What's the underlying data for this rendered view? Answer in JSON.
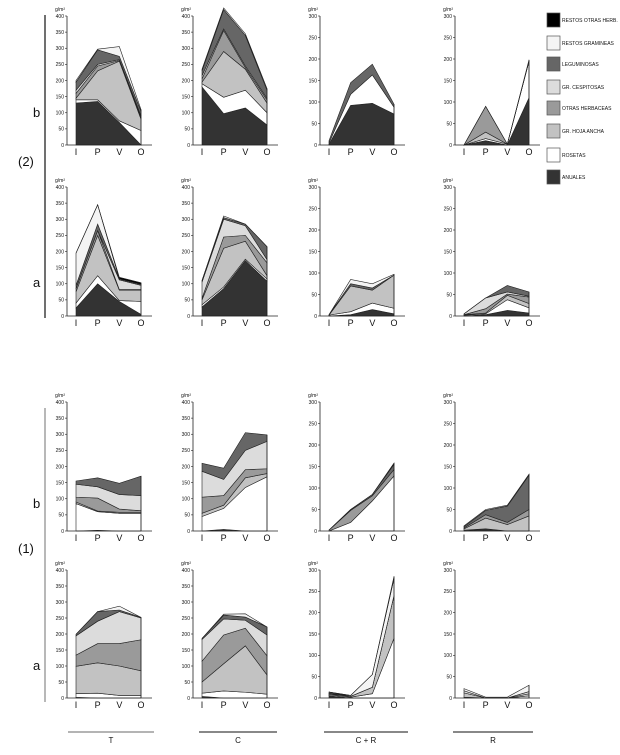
{
  "legend": [
    {
      "key": "restos_otras_herb",
      "label": "RESTOS OTRAS HERB.",
      "color": "#000000"
    },
    {
      "key": "restos_gramineas",
      "label": "RESTOS GRAMINEAS",
      "color": "#f4f4f4"
    },
    {
      "key": "leguminosas",
      "label": "LEGUMINOSAS",
      "color": "#666666"
    },
    {
      "key": "gr_cespitosas",
      "label": "GR. CESPITOSAS",
      "color": "#dcdcdc"
    },
    {
      "key": "otras_herbaceas",
      "label": "OTRAS HERBACEAS",
      "color": "#9a9a9a"
    },
    {
      "key": "gr_hoja_ancha",
      "label": "GR. HOJA  ANCHA",
      "color": "#c2c2c2"
    },
    {
      "key": "rosetas",
      "label": "ROSETAS",
      "color": "#ffffff"
    },
    {
      "key": "anuales",
      "label": "ANUALES",
      "color": "#333333"
    }
  ],
  "groups": [
    {
      "label": "(2)"
    },
    {
      "label": "(1)"
    }
  ],
  "row_labels": [
    "b",
    "a",
    "b",
    "a"
  ],
  "column_labels": [
    "T",
    "C",
    "C + R",
    "R"
  ],
  "chart_data": {
    "type": "area",
    "stacked": true,
    "ylabel": "g/m²",
    "categories": [
      "I",
      "P",
      "V",
      "O"
    ],
    "stack_order": [
      "anuales",
      "rosetas",
      "gr_hoja_ancha",
      "otras_herbaceas",
      "gr_cespitosas",
      "leguminosas",
      "restos_gramineas",
      "restos_otras_herb"
    ],
    "panels": [
      {
        "group": "(2)",
        "row": "b",
        "column": "T",
        "ylim": [
          0,
          400
        ],
        "yticks": [
          0,
          50,
          100,
          150,
          200,
          250,
          300,
          350,
          400
        ],
        "series": {
          "anuales": [
            130,
            135,
            70,
            0
          ],
          "rosetas": [
            10,
            5,
            5,
            45
          ],
          "gr_hoja_ancha": [
            5,
            90,
            185,
            35
          ],
          "otras_herbaceas": [
            15,
            15,
            2,
            5
          ],
          "gr_cespitosas": [
            10,
            5,
            3,
            5
          ],
          "leguminosas": [
            25,
            45,
            10,
            15
          ],
          "restos_gramineas": [
            5,
            2,
            30,
            5
          ],
          "restos_otras_herb": [
            0,
            0,
            0,
            0
          ]
        }
      },
      {
        "group": "(2)",
        "row": "b",
        "column": "C",
        "ylim": [
          0,
          400
        ],
        "yticks": [
          0,
          50,
          100,
          150,
          200,
          250,
          300,
          350,
          400
        ],
        "series": {
          "anuales": [
            180,
            97,
            115,
            62
          ],
          "rosetas": [
            10,
            51,
            55,
            38
          ],
          "gr_hoja_ancha": [
            5,
            142,
            65,
            30
          ],
          "otras_herbaceas": [
            10,
            65,
            5,
            10
          ],
          "gr_cespitosas": [
            10,
            5,
            5,
            5
          ],
          "leguminosas": [
            15,
            60,
            95,
            25
          ],
          "restos_gramineas": [
            5,
            5,
            5,
            5
          ],
          "restos_otras_herb": [
            0,
            0,
            0,
            0
          ]
        }
      },
      {
        "group": "(2)",
        "row": "b",
        "column": "C + R",
        "ylim": [
          0,
          300
        ],
        "yticks": [
          0,
          50,
          100,
          150,
          200,
          250,
          300
        ],
        "series": {
          "anuales": [
            2,
            92,
            97,
            72
          ],
          "rosetas": [
            3,
            26,
            66,
            16
          ],
          "gr_hoja_ancha": [
            0,
            0,
            0,
            0
          ],
          "otras_herbaceas": [
            0,
            0,
            0,
            0
          ],
          "gr_cespitosas": [
            0,
            0,
            0,
            0
          ],
          "leguminosas": [
            5,
            27,
            25,
            7
          ],
          "restos_gramineas": [
            0,
            0,
            0,
            0
          ],
          "restos_otras_herb": [
            0,
            0,
            0,
            0
          ]
        }
      },
      {
        "group": "(2)",
        "row": "b",
        "column": "R",
        "ylim": [
          0,
          300
        ],
        "yticks": [
          0,
          50,
          100,
          150,
          200,
          250,
          300
        ],
        "series": {
          "anuales": [
            0,
            10,
            0,
            110
          ],
          "rosetas": [
            0,
            5,
            2,
            85
          ],
          "gr_hoja_ancha": [
            0,
            15,
            0,
            0
          ],
          "otras_herbaceas": [
            0,
            60,
            0,
            0
          ],
          "gr_cespitosas": [
            0,
            0,
            0,
            0
          ],
          "leguminosas": [
            0,
            0,
            0,
            0
          ],
          "restos_gramineas": [
            0,
            0,
            0,
            3
          ],
          "restos_otras_herb": [
            0,
            0,
            0,
            0
          ]
        }
      },
      {
        "group": "(2)",
        "row": "a",
        "column": "T",
        "ylim": [
          0,
          400
        ],
        "yticks": [
          0,
          50,
          100,
          150,
          200,
          250,
          300,
          350,
          400
        ],
        "series": {
          "anuales": [
            25,
            100,
            45,
            5
          ],
          "rosetas": [
            15,
            25,
            3,
            40
          ],
          "gr_hoja_ancha": [
            35,
            125,
            32,
            35
          ],
          "otras_herbaceas": [
            10,
            15,
            2,
            2
          ],
          "gr_cespitosas": [
            0,
            0,
            30,
            13
          ],
          "leguminosas": [
            10,
            20,
            3,
            3
          ],
          "restos_gramineas": [
            100,
            60,
            0,
            0
          ],
          "restos_otras_herb": [
            0,
            0,
            5,
            5
          ]
        }
      },
      {
        "group": "(2)",
        "row": "a",
        "column": "C",
        "ylim": [
          0,
          400
        ],
        "yticks": [
          0,
          50,
          100,
          150,
          200,
          250,
          300,
          350,
          400
        ],
        "series": {
          "anuales": [
            28,
            85,
            172,
            108
          ],
          "rosetas": [
            7,
            5,
            4,
            7
          ],
          "gr_hoja_ancha": [
            15,
            120,
            56,
            10
          ],
          "otras_herbaceas": [
            5,
            35,
            18,
            40
          ],
          "gr_cespitosas": [
            50,
            55,
            30,
            10
          ],
          "leguminosas": [
            5,
            5,
            5,
            40
          ],
          "restos_gramineas": [
            0,
            5,
            0,
            0
          ],
          "restos_otras_herb": [
            0,
            0,
            0,
            0
          ]
        }
      },
      {
        "group": "(2)",
        "row": "a",
        "column": "C + R",
        "ylim": [
          0,
          300
        ],
        "yticks": [
          0,
          50,
          100,
          150,
          200,
          250,
          300
        ],
        "series": {
          "anuales": [
            0,
            3,
            15,
            5
          ],
          "rosetas": [
            2,
            7,
            15,
            13
          ],
          "gr_hoja_ancha": [
            0,
            60,
            30,
            77
          ],
          "otras_herbaceas": [
            0,
            0,
            0,
            0
          ],
          "gr_cespitosas": [
            0,
            0,
            0,
            0
          ],
          "leguminosas": [
            1,
            5,
            5,
            0
          ],
          "restos_gramineas": [
            0,
            10,
            10,
            2
          ],
          "restos_otras_herb": [
            0,
            0,
            0,
            0
          ]
        }
      },
      {
        "group": "(2)",
        "row": "a",
        "column": "R",
        "ylim": [
          0,
          300
        ],
        "yticks": [
          0,
          50,
          100,
          150,
          200,
          250,
          300
        ],
        "series": {
          "anuales": [
            0,
            3,
            13,
            7
          ],
          "rosetas": [
            2,
            2,
            25,
            12
          ],
          "gr_hoja_ancha": [
            1,
            2,
            10,
            10
          ],
          "otras_herbaceas": [
            0,
            10,
            3,
            15
          ],
          "gr_cespitosas": [
            2,
            25,
            5,
            2
          ],
          "leguminosas": [
            0,
            0,
            15,
            10
          ],
          "restos_gramineas": [
            0,
            0,
            0,
            0
          ],
          "restos_otras_herb": [
            0,
            0,
            0,
            0
          ]
        }
      },
      {
        "group": "(1)",
        "row": "b",
        "column": "T",
        "ylim": [
          0,
          400
        ],
        "yticks": [
          0,
          50,
          100,
          150,
          200,
          250,
          300,
          350,
          400
        ],
        "series": {
          "anuales": [
            0,
            2,
            0,
            0
          ],
          "rosetas": [
            85,
            58,
            55,
            55
          ],
          "gr_hoja_ancha": [
            5,
            2,
            3,
            3
          ],
          "otras_herbaceas": [
            15,
            40,
            10,
            5
          ],
          "gr_cespitosas": [
            40,
            35,
            45,
            47
          ],
          "leguminosas": [
            10,
            28,
            35,
            60
          ],
          "restos_gramineas": [
            0,
            0,
            0,
            0
          ],
          "restos_otras_herb": [
            0,
            0,
            0,
            0
          ]
        }
      },
      {
        "group": "(1)",
        "row": "b",
        "column": "C",
        "ylim": [
          0,
          400
        ],
        "yticks": [
          0,
          50,
          100,
          150,
          200,
          250,
          300,
          350,
          400
        ],
        "series": {
          "anuales": [
            0,
            5,
            0,
            0
          ],
          "rosetas": [
            45,
            65,
            135,
            168
          ],
          "gr_hoja_ancha": [
            10,
            10,
            30,
            10
          ],
          "otras_herbaceas": [
            50,
            30,
            25,
            15
          ],
          "gr_cespitosas": [
            80,
            50,
            60,
            85
          ],
          "leguminosas": [
            25,
            35,
            55,
            20
          ],
          "restos_gramineas": [
            0,
            0,
            0,
            0
          ],
          "restos_otras_herb": [
            0,
            0,
            0,
            0
          ]
        }
      },
      {
        "group": "(1)",
        "row": "b",
        "column": "C + R",
        "ylim": [
          0,
          300
        ],
        "yticks": [
          0,
          50,
          100,
          150,
          200,
          250,
          300
        ],
        "series": {
          "anuales": [
            0,
            0,
            0,
            0
          ],
          "rosetas": [
            0,
            20,
            70,
            128
          ],
          "gr_hoja_ancha": [
            0,
            0,
            0,
            0
          ],
          "otras_herbaceas": [
            2,
            28,
            12,
            15
          ],
          "gr_cespitosas": [
            0,
            0,
            0,
            0
          ],
          "leguminosas": [
            0,
            2,
            3,
            12
          ],
          "restos_gramineas": [
            0,
            0,
            0,
            0
          ],
          "restos_otras_herb": [
            0,
            0,
            0,
            3
          ]
        }
      },
      {
        "group": "(1)",
        "row": "b",
        "column": "R",
        "ylim": [
          0,
          300
        ],
        "yticks": [
          0,
          50,
          100,
          150,
          200,
          250,
          300
        ],
        "series": {
          "anuales": [
            0,
            5,
            0,
            0
          ],
          "rosetas": [
            2,
            0,
            0,
            0
          ],
          "gr_hoja_ancha": [
            3,
            25,
            15,
            35
          ],
          "otras_herbaceas": [
            2,
            8,
            5,
            15
          ],
          "gr_cespitosas": [
            0,
            0,
            0,
            0
          ],
          "leguminosas": [
            3,
            10,
            38,
            80
          ],
          "restos_gramineas": [
            2,
            2,
            2,
            2
          ],
          "restos_otras_herb": [
            0,
            0,
            0,
            0
          ]
        }
      },
      {
        "group": "(1)",
        "row": "a",
        "column": "T",
        "ylim": [
          0,
          400
        ],
        "yticks": [
          0,
          50,
          100,
          150,
          200,
          250,
          300,
          350,
          400
        ],
        "series": {
          "anuales": [
            2,
            0,
            0,
            0
          ],
          "rosetas": [
            12,
            15,
            8,
            8
          ],
          "gr_hoja_ancha": [
            85,
            95,
            92,
            77
          ],
          "otras_herbaceas": [
            35,
            60,
            70,
            97
          ],
          "gr_cespitosas": [
            60,
            70,
            100,
            68
          ],
          "leguminosas": [
            5,
            30,
            5,
            2
          ],
          "restos_gramineas": [
            0,
            0,
            12,
            0
          ],
          "restos_otras_herb": [
            0,
            0,
            0,
            0
          ]
        }
      },
      {
        "group": "(1)",
        "row": "a",
        "column": "C",
        "ylim": [
          0,
          400
        ],
        "yticks": [
          0,
          50,
          100,
          150,
          200,
          250,
          300,
          350,
          400
        ],
        "series": {
          "anuales": [
            5,
            0,
            0,
            0
          ],
          "rosetas": [
            10,
            22,
            18,
            12
          ],
          "gr_hoja_ancha": [
            35,
            85,
            145,
            60
          ],
          "otras_herbaceas": [
            65,
            90,
            55,
            60
          ],
          "gr_cespitosas": [
            68,
            50,
            25,
            65
          ],
          "leguminosas": [
            3,
            12,
            10,
            25
          ],
          "restos_gramineas": [
            0,
            3,
            10,
            0
          ],
          "restos_otras_herb": [
            0,
            0,
            0,
            0
          ]
        }
      },
      {
        "group": "(1)",
        "row": "a",
        "column": "C + R",
        "ylim": [
          0,
          300
        ],
        "yticks": [
          0,
          50,
          100,
          150,
          200,
          250,
          300
        ],
        "series": {
          "anuales": [
            5,
            0,
            0,
            0
          ],
          "rosetas": [
            2,
            2,
            10,
            140
          ],
          "gr_hoja_ancha": [
            2,
            2,
            15,
            100
          ],
          "otras_herbaceas": [
            2,
            0,
            0,
            0
          ],
          "gr_cespitosas": [
            0,
            0,
            0,
            0
          ],
          "leguminosas": [
            3,
            0,
            0,
            0
          ],
          "restos_gramineas": [
            0,
            2,
            30,
            40
          ],
          "restos_otras_herb": [
            0,
            0,
            0,
            5
          ]
        }
      },
      {
        "group": "(1)",
        "row": "a",
        "column": "R",
        "ylim": [
          0,
          300
        ],
        "yticks": [
          0,
          50,
          100,
          150,
          200,
          250,
          300
        ],
        "series": {
          "anuales": [
            0,
            0,
            0,
            0
          ],
          "rosetas": [
            2,
            0,
            0,
            5
          ],
          "gr_hoja_ancha": [
            10,
            0,
            0,
            5
          ],
          "otras_herbaceas": [
            0,
            0,
            0,
            0
          ],
          "gr_cespitosas": [
            5,
            0,
            0,
            5
          ],
          "leguminosas": [
            0,
            0,
            0,
            0
          ],
          "restos_gramineas": [
            5,
            2,
            2,
            15
          ],
          "restos_otras_herb": [
            0,
            0,
            0,
            0
          ]
        }
      }
    ]
  }
}
